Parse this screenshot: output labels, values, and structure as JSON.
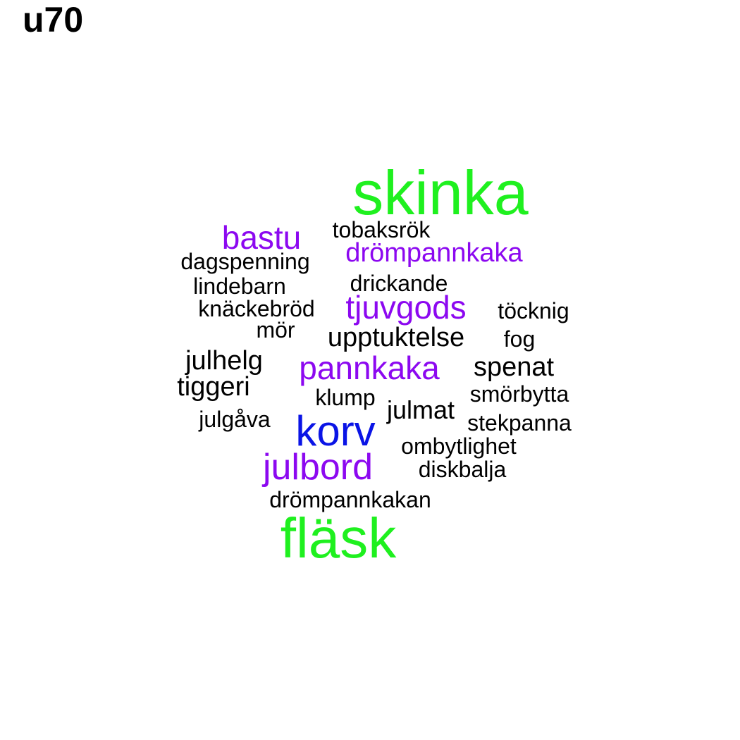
{
  "title": "u70",
  "colors": {
    "black": "#000000",
    "purple": "#8c08f0",
    "green": "#1ff01f",
    "blue": "#0a14e6"
  },
  "words": [
    {
      "text": "skinka",
      "color": "green"
    },
    {
      "text": "fläsk",
      "color": "green"
    },
    {
      "text": "korv",
      "color": "blue"
    },
    {
      "text": "julbord",
      "color": "purple"
    },
    {
      "text": "pannkaka",
      "color": "purple"
    },
    {
      "text": "tjuvgods",
      "color": "purple"
    },
    {
      "text": "bastu",
      "color": "purple"
    },
    {
      "text": "drömpannkaka",
      "color": "purple"
    },
    {
      "text": "tobaksrök",
      "color": "black"
    },
    {
      "text": "dagspenning",
      "color": "black"
    },
    {
      "text": "lindebarn",
      "color": "black"
    },
    {
      "text": "drickande",
      "color": "black"
    },
    {
      "text": "knäckebröd",
      "color": "black"
    },
    {
      "text": "töcknig",
      "color": "black"
    },
    {
      "text": "mör",
      "color": "black"
    },
    {
      "text": "upptuktelse",
      "color": "black"
    },
    {
      "text": "fog",
      "color": "black"
    },
    {
      "text": "julhelg",
      "color": "black"
    },
    {
      "text": "spenat",
      "color": "black"
    },
    {
      "text": "tiggeri",
      "color": "black"
    },
    {
      "text": "klump",
      "color": "black"
    },
    {
      "text": "smörbytta",
      "color": "black"
    },
    {
      "text": "julmat",
      "color": "black"
    },
    {
      "text": "julgåva",
      "color": "black"
    },
    {
      "text": "stekpanna",
      "color": "black"
    },
    {
      "text": "ombytlighet",
      "color": "black"
    },
    {
      "text": "diskbalja",
      "color": "black"
    },
    {
      "text": "drömpannkakan",
      "color": "black"
    }
  ]
}
